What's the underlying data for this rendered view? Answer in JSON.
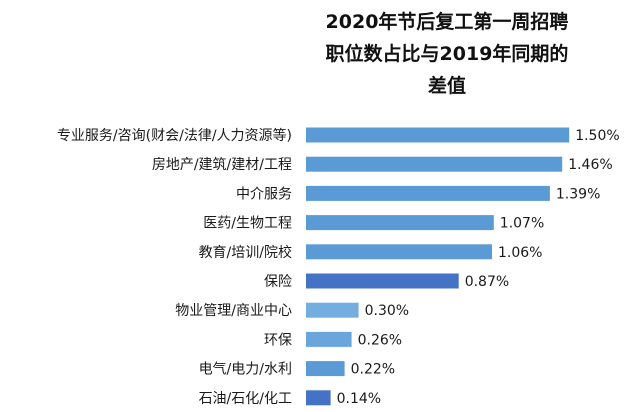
{
  "chart_data": {
    "type": "bar",
    "orientation": "horizontal",
    "title_lines": [
      "2020年节后复工第一周招聘",
      "职位数占比与2019年同期的",
      "差值"
    ],
    "categories": [
      "专业服务/咨询(财会/法律/人力资源等)",
      "房地产/建筑/建材/工程",
      "中介服务",
      "医药/生物工程",
      "教育/培训/院校",
      "保险",
      "物业管理/商业中心",
      "环保",
      "电气/电力/水利",
      "石油/石化/化工"
    ],
    "values": [
      1.5,
      1.46,
      1.39,
      1.07,
      1.06,
      0.87,
      0.3,
      0.26,
      0.22,
      0.14
    ],
    "value_labels": [
      "1.50%",
      "1.46%",
      "1.39%",
      "1.07%",
      "1.06%",
      "0.87%",
      "0.30%",
      "0.26%",
      "0.22%",
      "0.14%"
    ],
    "bar_colors": [
      "#5b9bd5",
      "#5b9bd5",
      "#5b9bd5",
      "#5b9bd5",
      "#5b9bd5",
      "#4472c4",
      "#74aee0",
      "#6aa6dc",
      "#5b9bd5",
      "#4472c4"
    ],
    "unit": "%",
    "xlim": [
      0,
      1.55
    ],
    "grid": false,
    "legend": "none"
  }
}
